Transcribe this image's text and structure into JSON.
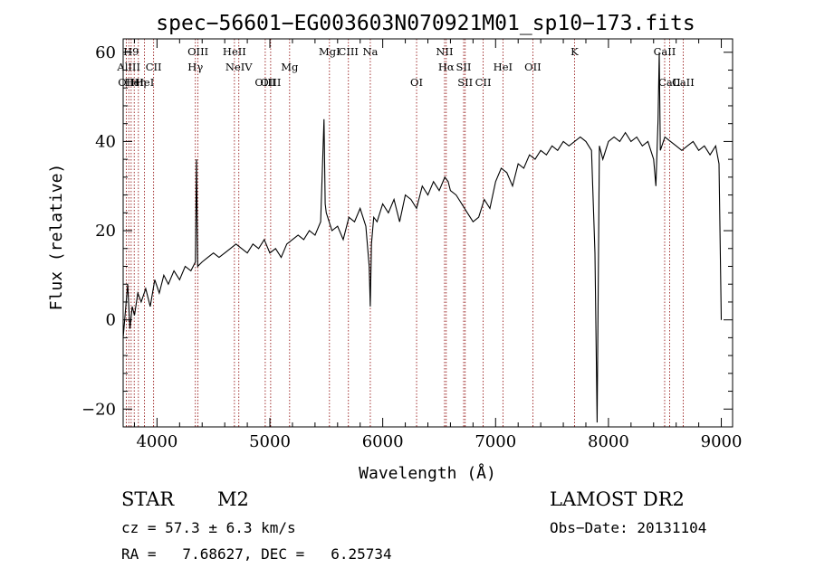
{
  "chart_data": {
    "type": "line",
    "title": "spec−56601−EG003603N070921M01_sp10−173.fits",
    "xlabel": "Wavelength (Å)",
    "ylabel": "Flux (relative)",
    "xlim": [
      3700,
      9100
    ],
    "ylim": [
      -24,
      63
    ],
    "x_ticks": [
      4000,
      5000,
      6000,
      7000,
      8000,
      9000
    ],
    "y_ticks": [
      -20,
      0,
      20,
      40,
      60
    ],
    "grid": false,
    "legend": "none",
    "colors": {
      "spectrum": "#000000",
      "line_markers": "#8b0000"
    },
    "series": [
      {
        "x": [
          3700,
          3740,
          3760,
          3780,
          3800,
          3830,
          3860,
          3900,
          3940,
          3980,
          4020,
          4060,
          4100,
          4150,
          4200,
          4250,
          4300,
          4340,
          4350,
          4360,
          4400,
          4450,
          4500,
          4550,
          4600,
          4650,
          4700,
          4750,
          4800,
          4850,
          4900,
          4950,
          5000,
          5050,
          5100,
          5150,
          5200,
          5250,
          5300,
          5350,
          5400,
          5450,
          5480,
          5490,
          5500,
          5550,
          5600,
          5650,
          5700,
          5750,
          5800,
          5850,
          5880,
          5890,
          5900,
          5920,
          5950,
          6000,
          6050,
          6100,
          6150,
          6200,
          6250,
          6300,
          6350,
          6400,
          6450,
          6500,
          6550,
          6580,
          6600,
          6650,
          6700,
          6750,
          6800,
          6850,
          6900,
          6950,
          7000,
          7050,
          7100,
          7150,
          7200,
          7250,
          7300,
          7350,
          7400,
          7450,
          7500,
          7550,
          7600,
          7650,
          7700,
          7750,
          7800,
          7850,
          7880,
          7900,
          7920,
          7950,
          8000,
          8050,
          8100,
          8150,
          8200,
          8250,
          8300,
          8350,
          8400,
          8420,
          8440,
          8450,
          8460,
          8500,
          8550,
          8600,
          8650,
          8700,
          8750,
          8800,
          8850,
          8900,
          8950,
          8980,
          9000
        ],
        "y": [
          -4,
          8,
          -2,
          3,
          1,
          6,
          4,
          7,
          3,
          9,
          6,
          10,
          8,
          11,
          9,
          12,
          11,
          13,
          36,
          12,
          13,
          14,
          15,
          14,
          15,
          16,
          17,
          16,
          15,
          17,
          16,
          18,
          15,
          16,
          14,
          17,
          18,
          19,
          18,
          20,
          19,
          22,
          45,
          26,
          24,
          20,
          21,
          18,
          23,
          22,
          25,
          21,
          12,
          3,
          17,
          23,
          22,
          26,
          24,
          27,
          22,
          28,
          27,
          25,
          30,
          28,
          31,
          29,
          32,
          31,
          29,
          28,
          26,
          24,
          22,
          23,
          27,
          25,
          31,
          34,
          33,
          30,
          35,
          34,
          37,
          36,
          38,
          37,
          39,
          38,
          40,
          39,
          40,
          41,
          40,
          38,
          15,
          -23,
          39,
          36,
          40,
          41,
          40,
          42,
          40,
          41,
          39,
          40,
          36,
          30,
          45,
          60,
          38,
          41,
          40,
          39,
          38,
          39,
          40,
          38,
          39,
          37,
          39,
          35,
          0
        ]
      }
    ],
    "line_markers": [
      {
        "wavelength": 3728,
        "label": "OII",
        "row": 2
      },
      {
        "wavelength": 3750,
        "label": "AlIII",
        "row": 1
      },
      {
        "wavelength": 3771,
        "label": "H9",
        "row": 0
      },
      {
        "wavelength": 3798,
        "label": "HeI",
        "row": 2
      },
      {
        "wavelength": 3835,
        "label": "Hη",
        "row": 2
      },
      {
        "wavelength": 3889,
        "label": "HeI",
        "row": 2
      },
      {
        "wavelength": 3970,
        "label": "CII",
        "row": 1
      },
      {
        "wavelength": 4340,
        "label": "Hγ",
        "row": 1
      },
      {
        "wavelength": 4363,
        "label": "OIII",
        "row": 0
      },
      {
        "wavelength": 4686,
        "label": "HeII",
        "row": 0
      },
      {
        "wavelength": 4725,
        "label": "NeIV",
        "row": 1
      },
      {
        "wavelength": 4959,
        "label": "OIII",
        "row": 2
      },
      {
        "wavelength": 5007,
        "label": "OIII",
        "row": 2
      },
      {
        "wavelength": 5175,
        "label": "Mg",
        "row": 1
      },
      {
        "wavelength": 5528,
        "label": "MgI",
        "row": 0
      },
      {
        "wavelength": 5696,
        "label": "CIII",
        "row": 0
      },
      {
        "wavelength": 5890,
        "label": "Na",
        "row": 0
      },
      {
        "wavelength": 6300,
        "label": "OI",
        "row": 2
      },
      {
        "wavelength": 6548,
        "label": "NII",
        "row": 0
      },
      {
        "wavelength": 6563,
        "label": "Hα",
        "row": 1
      },
      {
        "wavelength": 6717,
        "label": "SII",
        "row": 1
      },
      {
        "wavelength": 6731,
        "label": "SII",
        "row": 2
      },
      {
        "wavelength": 6890,
        "label": "CII",
        "row": 2
      },
      {
        "wavelength": 7330,
        "label": "OII",
        "row": 1
      },
      {
        "wavelength": 7065,
        "label": "HeI",
        "row": 1
      },
      {
        "wavelength": 7699,
        "label": "K",
        "row": 0
      },
      {
        "wavelength": 8498,
        "label": "CaII",
        "row": 0
      },
      {
        "wavelength": 8542,
        "label": "CaII",
        "row": 2
      },
      {
        "wavelength": 8662,
        "label": "CaII",
        "row": 2
      }
    ]
  },
  "info": {
    "object_class": "STAR",
    "subclass": "M2",
    "cz": "cz = 57.3 ± 6.3 km/s",
    "coords": "RA =   7.68627, DEC =   6.25734",
    "survey": "LAMOST DR2",
    "obs_date": "Obs−Date: 20131104"
  }
}
